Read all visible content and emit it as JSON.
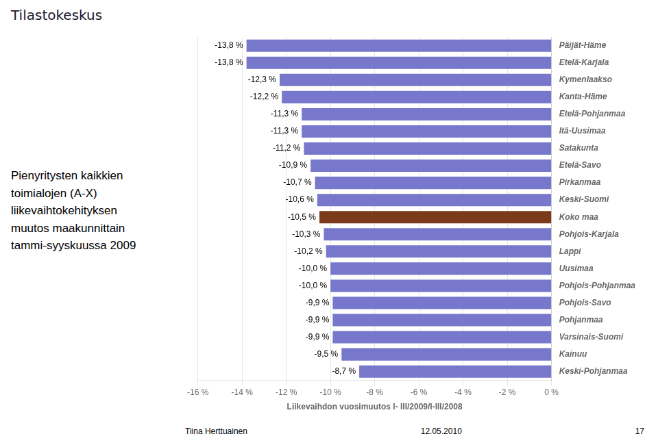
{
  "chart_data": {
    "type": "bar",
    "orientation": "horizontal",
    "title": "Pienyritysten kaikkien\ntoimialojen (A-X)\nliikevaihtokehityksen\nmuutos maakunnittain\ntammi-syyskuussa 2009",
    "xlabel": "Liikevaihdon vuosimuutos I- III/2009/I-III/2008",
    "categories": [
      "Päijät-Häme",
      "Etelä-Karjala",
      "Kymenlaakso",
      "Kanta-Häme",
      "Etelä-Pohjanmaa",
      "Itä-Uusimaa",
      "Satakunta",
      "Etelä-Savo",
      "Pirkanmaa",
      "Keski-Suomi",
      "Koko maa",
      "Pohjois-Karjala",
      "Lappi",
      "Uusimaa",
      "Pohjois-Pohjanmaa",
      "Pohjois-Savo",
      "Pohjanmaa",
      "Varsinais-Suomi",
      "Kainuu",
      "Keski-Pohjanmaa"
    ],
    "values": [
      -13.8,
      -13.8,
      -12.3,
      -12.2,
      -11.3,
      -11.3,
      -11.2,
      -10.9,
      -10.7,
      -10.6,
      -10.5,
      -10.3,
      -10.2,
      -10.0,
      -10.0,
      -9.9,
      -9.9,
      -9.9,
      -9.5,
      -8.7
    ],
    "value_labels": [
      "-13,8 %",
      "-13,8 %",
      "-12,3 %",
      "-12,2 %",
      "-11,3 %",
      "-11,3 %",
      "-11,2 %",
      "-10,9 %",
      "-10,7 %",
      "-10,6 %",
      "-10,5 %",
      "-10,3 %",
      "-10,2 %",
      "-10,0 %",
      "-10,0 %",
      "-9,9 %",
      "-9,9 %",
      "-9,9 %",
      "-9,5 %",
      "-8,7 %"
    ],
    "data_labels": true,
    "colors": [
      "#7777CC",
      "#7777CC",
      "#7777CC",
      "#7777CC",
      "#7777CC",
      "#7777CC",
      "#7777CC",
      "#7777CC",
      "#7777CC",
      "#7777CC",
      "#7B3B1A",
      "#7777CC",
      "#7777CC",
      "#7777CC",
      "#7777CC",
      "#7777CC",
      "#7777CC",
      "#7777CC",
      "#7777CC",
      "#7777CC"
    ],
    "xlim": [
      -16,
      0
    ],
    "xticks": [
      {
        "value": -16,
        "label": "-16 %"
      },
      {
        "value": -14,
        "label": "-14 %"
      },
      {
        "value": -12,
        "label": "-12 %"
      },
      {
        "value": -10,
        "label": "-10 %"
      },
      {
        "value": -8,
        "label": "-8 %"
      },
      {
        "value": -6,
        "label": "-6 %"
      },
      {
        "value": -4,
        "label": "-4 %"
      },
      {
        "value": -2,
        "label": "-2 %"
      },
      {
        "value": 0,
        "label": "0 %"
      }
    ],
    "grid": true,
    "annotations": [
      "Tilastokeskus",
      "Tiina Herttuainen",
      "12.05.2010",
      "17"
    ]
  }
}
